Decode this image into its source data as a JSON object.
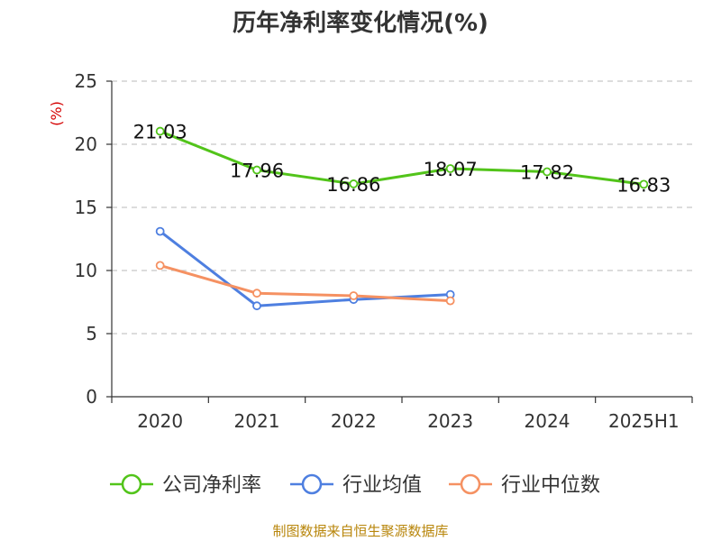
{
  "chart_data": {
    "type": "line",
    "title": "历年净利率变化情况(%)",
    "ylabel": "(%)",
    "xlabel": "",
    "categories": [
      "2020",
      "2021",
      "2022",
      "2023",
      "2024",
      "2025H1"
    ],
    "ylim": [
      0,
      25
    ],
    "yticks": [
      0,
      5,
      10,
      15,
      20,
      25
    ],
    "grid": "horizontal-dashed",
    "legend_position": "bottom",
    "series": [
      {
        "name": "公司净利率",
        "color": "#52c41a",
        "show_labels": true,
        "values": [
          21.03,
          17.96,
          16.86,
          18.07,
          17.82,
          16.83
        ],
        "labels": [
          "21.03",
          "17.96",
          "16.86",
          "18.07",
          "17.82",
          "16.83"
        ]
      },
      {
        "name": "行业均值",
        "color": "#4e7fe0",
        "show_labels": false,
        "values": [
          13.1,
          7.2,
          7.7,
          8.1,
          null,
          null
        ]
      },
      {
        "name": "行业中位数",
        "color": "#f59162",
        "show_labels": false,
        "values": [
          10.4,
          8.2,
          8.0,
          7.6,
          null,
          null
        ]
      }
    ]
  },
  "source": "制图数据来自恒生聚源数据库"
}
